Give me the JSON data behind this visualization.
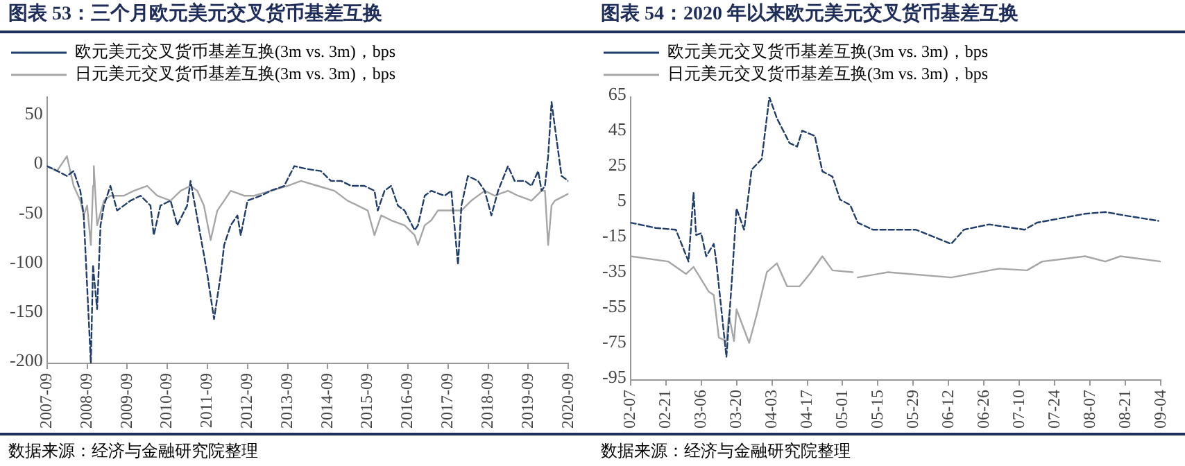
{
  "chart_data": [
    {
      "type": "line",
      "title": "图表 53：三个月欧元美元交叉货币基差互换",
      "legend": "top",
      "grid": false,
      "marker": "none",
      "xlim": [
        "2007-09",
        "2020-09"
      ],
      "xticks": [
        {
          "value": "2007-09",
          "label": "2007-09"
        },
        {
          "value": "2008-09",
          "label": "2008-09"
        },
        {
          "value": "2009-09",
          "label": "2009-09"
        },
        {
          "value": "2010-09",
          "label": "2010-09"
        },
        {
          "value": "2011-09",
          "label": "2011-09"
        },
        {
          "value": "2012-09",
          "label": "2012-09"
        },
        {
          "value": "2013-09",
          "label": "2013-09"
        },
        {
          "value": "2014-09",
          "label": "2014-09"
        },
        {
          "value": "2015-09",
          "label": "2015-09"
        },
        {
          "value": "2016-09",
          "label": "2016-09"
        },
        {
          "value": "2017-09",
          "label": "2017-09"
        },
        {
          "value": "2018-09",
          "label": "2018-09"
        },
        {
          "value": "2019-09",
          "label": "2019-09"
        },
        {
          "value": "2020-09",
          "label": "2020-09"
        }
      ],
      "ylim": [
        -200,
        70
      ],
      "yticks": [
        -200,
        -150,
        -100,
        -50,
        0,
        50
      ],
      "annotations": [
        "数据来源：经济与金融研究院整理"
      ],
      "series": [
        {
          "name": "欧元美元交叉货币基差互换(3m vs. 3m)，bps",
          "color": "#1f3d6b",
          "line_style": "dashed",
          "x": [
            "2007-09",
            "2007-11",
            "2008-03",
            "2008-05",
            "2008-07",
            "2008-08",
            "2008-10-05",
            "2008-10-25",
            "2008-11",
            "2008-12",
            "2009-01",
            "2009-02",
            "2009-04",
            "2009-06",
            "2009-10",
            "2010-01",
            "2010-04",
            "2010-05",
            "2010-07",
            "2010-10",
            "2010-12",
            "2011-03",
            "2011-04",
            "2011-08",
            "2011-09",
            "2011-11",
            "2012-01",
            "2012-02",
            "2012-04",
            "2012-06",
            "2012-07",
            "2012-09",
            "2013-01",
            "2013-04",
            "2013-08",
            "2013-11",
            "2014-03",
            "2014-07",
            "2014-10",
            "2015-01",
            "2015-04",
            "2015-08",
            "2015-11",
            "2015-12",
            "2016-02",
            "2016-04",
            "2016-06",
            "2016-08",
            "2016-11",
            "2016-12",
            "2017-02",
            "2017-04",
            "2017-08",
            "2017-10",
            "2017-12",
            "2018-01",
            "2018-03",
            "2018-06",
            "2018-08",
            "2018-10",
            "2018-12",
            "2019-03",
            "2019-05",
            "2019-08",
            "2019-10",
            "2019-12",
            "2020-01",
            "2020-02",
            "2020-03",
            "2020-04",
            "2020-05",
            "2020-07",
            "2020-09"
          ],
          "values": [
            0,
            -3,
            -10,
            -5,
            -25,
            -50,
            -200,
            -100,
            -110,
            -145,
            -60,
            -40,
            -20,
            -45,
            -35,
            -30,
            -40,
            -70,
            -40,
            -35,
            -60,
            -40,
            -15,
            -90,
            -110,
            -155,
            -110,
            -80,
            -60,
            -50,
            -70,
            -35,
            -30,
            -25,
            -20,
            0,
            -3,
            -5,
            -15,
            -15,
            -20,
            -20,
            -25,
            -45,
            -25,
            -20,
            -40,
            -45,
            -65,
            -60,
            -30,
            -25,
            -30,
            -25,
            -100,
            -40,
            -10,
            -15,
            -25,
            -50,
            -25,
            0,
            -15,
            -15,
            -20,
            -5,
            -25,
            -20,
            10,
            65,
            40,
            -10,
            -15
          ]
        },
        {
          "name": "日元美元交叉货币基差互换(3m vs. 3m)，bps",
          "color": "#a6a6a6",
          "line_style": "solid",
          "x": [
            "2007-09",
            "2007-12",
            "2008-03",
            "2008-05",
            "2008-07",
            "2008-08",
            "2008-09",
            "2008-10-05",
            "2008-10-25",
            "2008-11",
            "2008-12",
            "2009-02",
            "2009-04",
            "2009-08",
            "2009-11",
            "2010-03",
            "2010-06",
            "2010-10",
            "2011-01",
            "2011-04",
            "2011-06",
            "2011-08",
            "2011-10",
            "2011-12",
            "2012-02",
            "2012-04",
            "2012-08",
            "2012-11",
            "2013-04",
            "2013-09",
            "2014-01",
            "2014-06",
            "2014-11",
            "2015-03",
            "2015-06",
            "2015-09",
            "2015-11",
            "2016-01",
            "2016-04",
            "2016-08",
            "2016-11",
            "2016-12",
            "2017-02",
            "2017-04",
            "2017-06",
            "2017-10",
            "2018-01",
            "2018-04",
            "2018-08",
            "2018-11",
            "2019-03",
            "2019-06",
            "2019-10",
            "2020-01",
            "2020-02",
            "2020-03",
            "2020-04",
            "2020-05",
            "2020-09"
          ],
          "values": [
            0,
            -5,
            10,
            -20,
            -35,
            -50,
            -40,
            -80,
            -20,
            0,
            -60,
            -35,
            -30,
            -30,
            -25,
            -20,
            -30,
            -35,
            -25,
            -20,
            -25,
            -40,
            -75,
            -45,
            -35,
            -25,
            -30,
            -30,
            -25,
            -20,
            -15,
            -20,
            -25,
            -35,
            -40,
            -45,
            -70,
            -50,
            -55,
            -60,
            -70,
            -80,
            -60,
            -55,
            -45,
            -45,
            -45,
            -35,
            -25,
            -30,
            -25,
            -30,
            -35,
            -25,
            -25,
            -80,
            -40,
            -35,
            -28
          ]
        }
      ]
    },
    {
      "type": "line",
      "title": "图表 54：2020 年以来欧元美元交叉货币基差互换",
      "legend": "top",
      "grid": false,
      "marker": "none",
      "xlim": [
        "--02-07",
        "--09-04"
      ],
      "xticks": [
        {
          "value": "--02-07",
          "label": "02-07"
        },
        {
          "value": "--02-21",
          "label": "02-21"
        },
        {
          "value": "--03-06",
          "label": "03-06"
        },
        {
          "value": "--03-20",
          "label": "03-20"
        },
        {
          "value": "--04-03",
          "label": "04-03"
        },
        {
          "value": "--04-17",
          "label": "04-17"
        },
        {
          "value": "--05-01",
          "label": "05-01"
        },
        {
          "value": "--05-15",
          "label": "05-15"
        },
        {
          "value": "--05-29",
          "label": "05-29"
        },
        {
          "value": "--06-12",
          "label": "06-12"
        },
        {
          "value": "--06-26",
          "label": "06-26"
        },
        {
          "value": "--07-10",
          "label": "07-10"
        },
        {
          "value": "--07-24",
          "label": "07-24"
        },
        {
          "value": "--08-07",
          "label": "08-07"
        },
        {
          "value": "--08-21",
          "label": "08-21"
        },
        {
          "value": "--09-04",
          "label": "09-04"
        }
      ],
      "ylim": [
        -95,
        65
      ],
      "yticks": [
        -95,
        -75,
        -55,
        -35,
        -15,
        5,
        25,
        45,
        65
      ],
      "annotations": [
        "数据来源：经济与金融研究院整理"
      ],
      "series": [
        {
          "name": "欧元美元交叉货币基差互换(3m vs. 3m)，bps",
          "color": "#1f3d6b",
          "line_style": "dashed",
          "x": [
            "--02-07",
            "--02-17",
            "--02-25",
            "--03-01",
            "--03-03",
            "--03-04",
            "--03-06",
            "--03-08",
            "--03-11",
            "--03-12",
            "--03-16",
            "--03-18",
            "--03-20",
            "--03-23",
            "--03-26",
            "--03-30",
            "--04-02",
            "--04-05",
            "--04-10",
            "--04-13",
            "--04-15",
            "--04-20",
            "--04-23",
            "--04-27",
            "--04-30",
            "--05-04",
            "--05-07",
            "--05-13",
            "--05-30",
            "--06-13",
            "--06-18",
            "--06-28",
            "--07-12",
            "--07-17",
            "--08-05",
            "--08-13",
            "--08-21",
            "--09-03"
          ],
          "values": [
            -6,
            -9,
            -10,
            -28,
            11,
            -13,
            -12,
            -25,
            -18,
            -28,
            -82,
            -42,
            2,
            -10,
            24,
            30,
            65,
            53,
            39,
            37,
            46,
            43,
            23,
            20,
            7,
            4,
            -6,
            -10,
            -10,
            -18,
            -10,
            -7,
            -10,
            -6,
            -1,
            0,
            -2,
            -5
          ]
        },
        {
          "name": "日元美元交叉货币基差互换(3m vs. 3m)，bps",
          "color": "#a6a6a6",
          "line_style": "solid",
          "x": [
            "--02-07",
            "--02-22",
            "--02-29",
            "--03-03",
            "--03-09",
            "--03-11",
            "--03-13",
            "--03-16",
            "--03-17",
            "--03-19",
            "--03-20",
            "--03-25",
            "--03-28",
            "--04-01",
            "--04-05",
            "--04-09",
            "--04-14",
            "--04-18",
            "--04-23",
            "--04-27",
            "--05-05",
            "--05-06",
            "--05-07",
            "--05-19",
            "--06-13",
            "--07-02",
            "--07-13",
            "--07-19",
            "--08-05",
            "--08-13",
            "--08-19",
            "--09-04"
          ],
          "values": [
            -25,
            -28,
            -35,
            -31,
            -45,
            -47,
            -71,
            -73,
            -58,
            -73,
            -55,
            -74,
            -58,
            -34,
            -29,
            -42,
            -42,
            -35,
            -25,
            -33,
            -34,
            null,
            -37,
            -34,
            -37,
            -32,
            -33,
            -28,
            -25,
            -28,
            -25,
            -28
          ]
        }
      ]
    }
  ]
}
